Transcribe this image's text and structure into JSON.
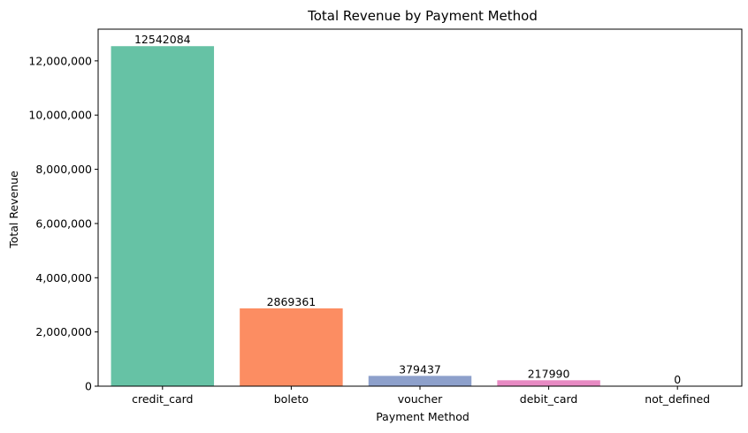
{
  "chart_data": {
    "type": "bar",
    "title": "Total Revenue by Payment Method",
    "xlabel": "Payment Method",
    "ylabel": "Total Revenue",
    "categories": [
      "credit_card",
      "boleto",
      "voucher",
      "debit_card",
      "not_defined"
    ],
    "values": [
      12542084,
      2869361,
      379437,
      217990,
      0
    ],
    "data_labels": [
      "12542084",
      "2869361",
      "379437",
      "217990",
      "0"
    ],
    "colors": [
      "#66c2a5",
      "#fc8d62",
      "#8da0cb",
      "#e78ac3",
      "#a6d854"
    ],
    "ylim": [
      0,
      13169188
    ],
    "yticks": [
      0,
      2000000,
      4000000,
      6000000,
      8000000,
      10000000,
      12000000
    ],
    "ytick_labels": [
      "0",
      "2,000,000",
      "4,000,000",
      "6,000,000",
      "8,000,000",
      "10,000,000",
      "12,000,000"
    ],
    "grid": false,
    "legend": "none"
  }
}
